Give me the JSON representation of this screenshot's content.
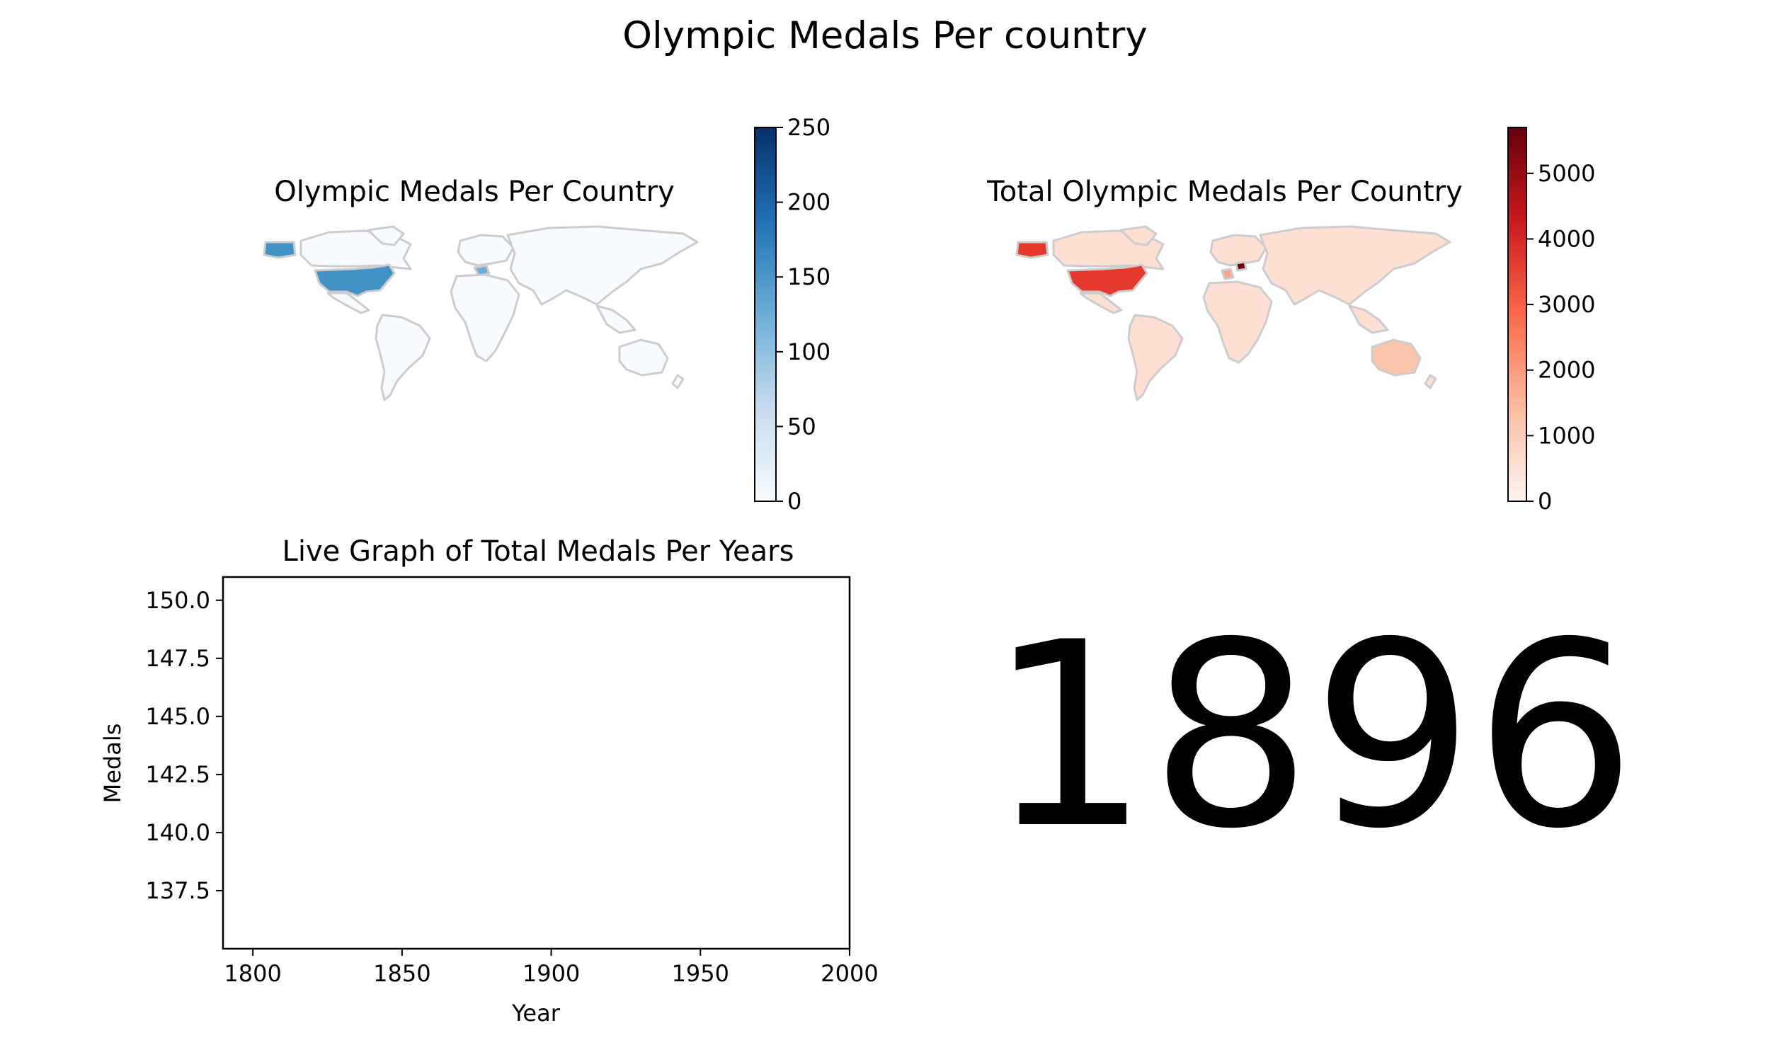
{
  "figure": {
    "suptitle": "Olympic Medals Per country",
    "year_display": "1896"
  },
  "chart_data": [
    {
      "type": "heatmap",
      "subtype": "choropleth",
      "title": "Olympic Medals Per Country",
      "colormap": "Blues",
      "colorbar": {
        "range": [
          0,
          250
        ],
        "ticks": [
          0,
          50,
          100,
          150,
          200,
          250
        ]
      },
      "country_values": {
        "United States": 150,
        "Greece": 40,
        "Other countries": 0
      },
      "border_color": "#cccccc",
      "colors": {
        "low": "#f7fbff",
        "high": "#08306b"
      }
    },
    {
      "type": "heatmap",
      "subtype": "choropleth",
      "title": "Total Olympic Medals Per Country",
      "colormap": "Reds",
      "colorbar": {
        "range": [
          0,
          5700
        ],
        "ticks": [
          0,
          1000,
          2000,
          3000,
          4000,
          5000
        ]
      },
      "country_values": {
        "United States": 3800,
        "Switzerland": 5600,
        "France": 1600,
        "Other countries": 400
      },
      "border_color": "#cccccc",
      "colors": {
        "low": "#fff5f0",
        "high": "#67000d"
      }
    },
    {
      "type": "line",
      "title": "Live Graph of  Total Medals Per Years",
      "xlabel": "Year",
      "ylabel": "Medals",
      "xlim": [
        1790,
        2000
      ],
      "ylim": [
        135,
        151
      ],
      "xticks": [
        1800,
        1850,
        1900,
        1950,
        2000
      ],
      "yticks": [
        137.5,
        140.0,
        142.5,
        145.0,
        147.5,
        150.0
      ],
      "series": [],
      "grid": false
    }
  ]
}
